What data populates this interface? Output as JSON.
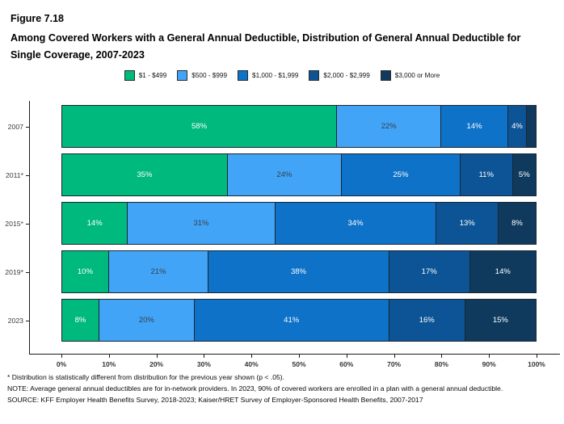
{
  "header": {
    "figure_label": "Figure 7.18",
    "title": "Among Covered Workers with a General Annual Deductible, Distribution of General Annual Deductible for Single Coverage, 2007-2023"
  },
  "chart_data": {
    "type": "bar",
    "subtype": "horizontal-stacked",
    "stacked": true,
    "orientation": "horizontal",
    "title": "Among Covered Workers with a General Annual Deductible, Distribution of General Annual Deductible for Single Coverage, 2007-2023",
    "categories": [
      "2007",
      "2011*",
      "2015*",
      "2019*",
      "2023"
    ],
    "series": [
      {
        "name": "$1 - $499",
        "color": "#00b97d",
        "label_color": "#ffffff",
        "values": [
          58,
          35,
          14,
          10,
          8
        ]
      },
      {
        "name": "$500 - $999",
        "color": "#41a4f7",
        "label_color": "#3a4049",
        "values": [
          22,
          24,
          31,
          21,
          20
        ]
      },
      {
        "name": "$1,000 - $1,999",
        "color": "#0d72c8",
        "label_color": "#ffffff",
        "values": [
          14,
          25,
          34,
          38,
          41
        ]
      },
      {
        "name": "$2,000 - $2,999",
        "color": "#0d5496",
        "label_color": "#ffffff",
        "values": [
          4,
          11,
          13,
          17,
          16
        ]
      },
      {
        "name": "$3,000 or More",
        "color": "#0f3a5e",
        "label_color": "#ffffff",
        "values": [
          2,
          5,
          8,
          14,
          15
        ]
      }
    ],
    "segment_labels": [
      [
        "58%",
        "22%",
        "14%",
        "4%",
        ""
      ],
      [
        "35%",
        "24%",
        "25%",
        "11%",
        "5%"
      ],
      [
        "14%",
        "31%",
        "34%",
        "13%",
        "8%"
      ],
      [
        "10%",
        "21%",
        "38%",
        "17%",
        "14%"
      ],
      [
        "8%",
        "20%",
        "41%",
        "16%",
        "15%"
      ]
    ],
    "x_ticks": [
      "0%",
      "10%",
      "20%",
      "30%",
      "40%",
      "50%",
      "60%",
      "70%",
      "80%",
      "90%",
      "100%"
    ],
    "xlim": [
      0,
      100
    ],
    "xlabel": "",
    "ylabel": "",
    "grid": false,
    "legend_position": "top"
  },
  "footnotes": [
    "* Distribution is statistically different from distribution for the previous year shown (p < .05).",
    "NOTE: Average general annual deductibles are for in-network providers. In 2023, 90% of covered workers are enrolled in a plan with a general annual deductible.",
    "SOURCE: KFF Employer Health Benefits Survey, 2018-2023; Kaiser/HRET Survey of Employer-Sponsored Health Benefits, 2007-2017"
  ]
}
